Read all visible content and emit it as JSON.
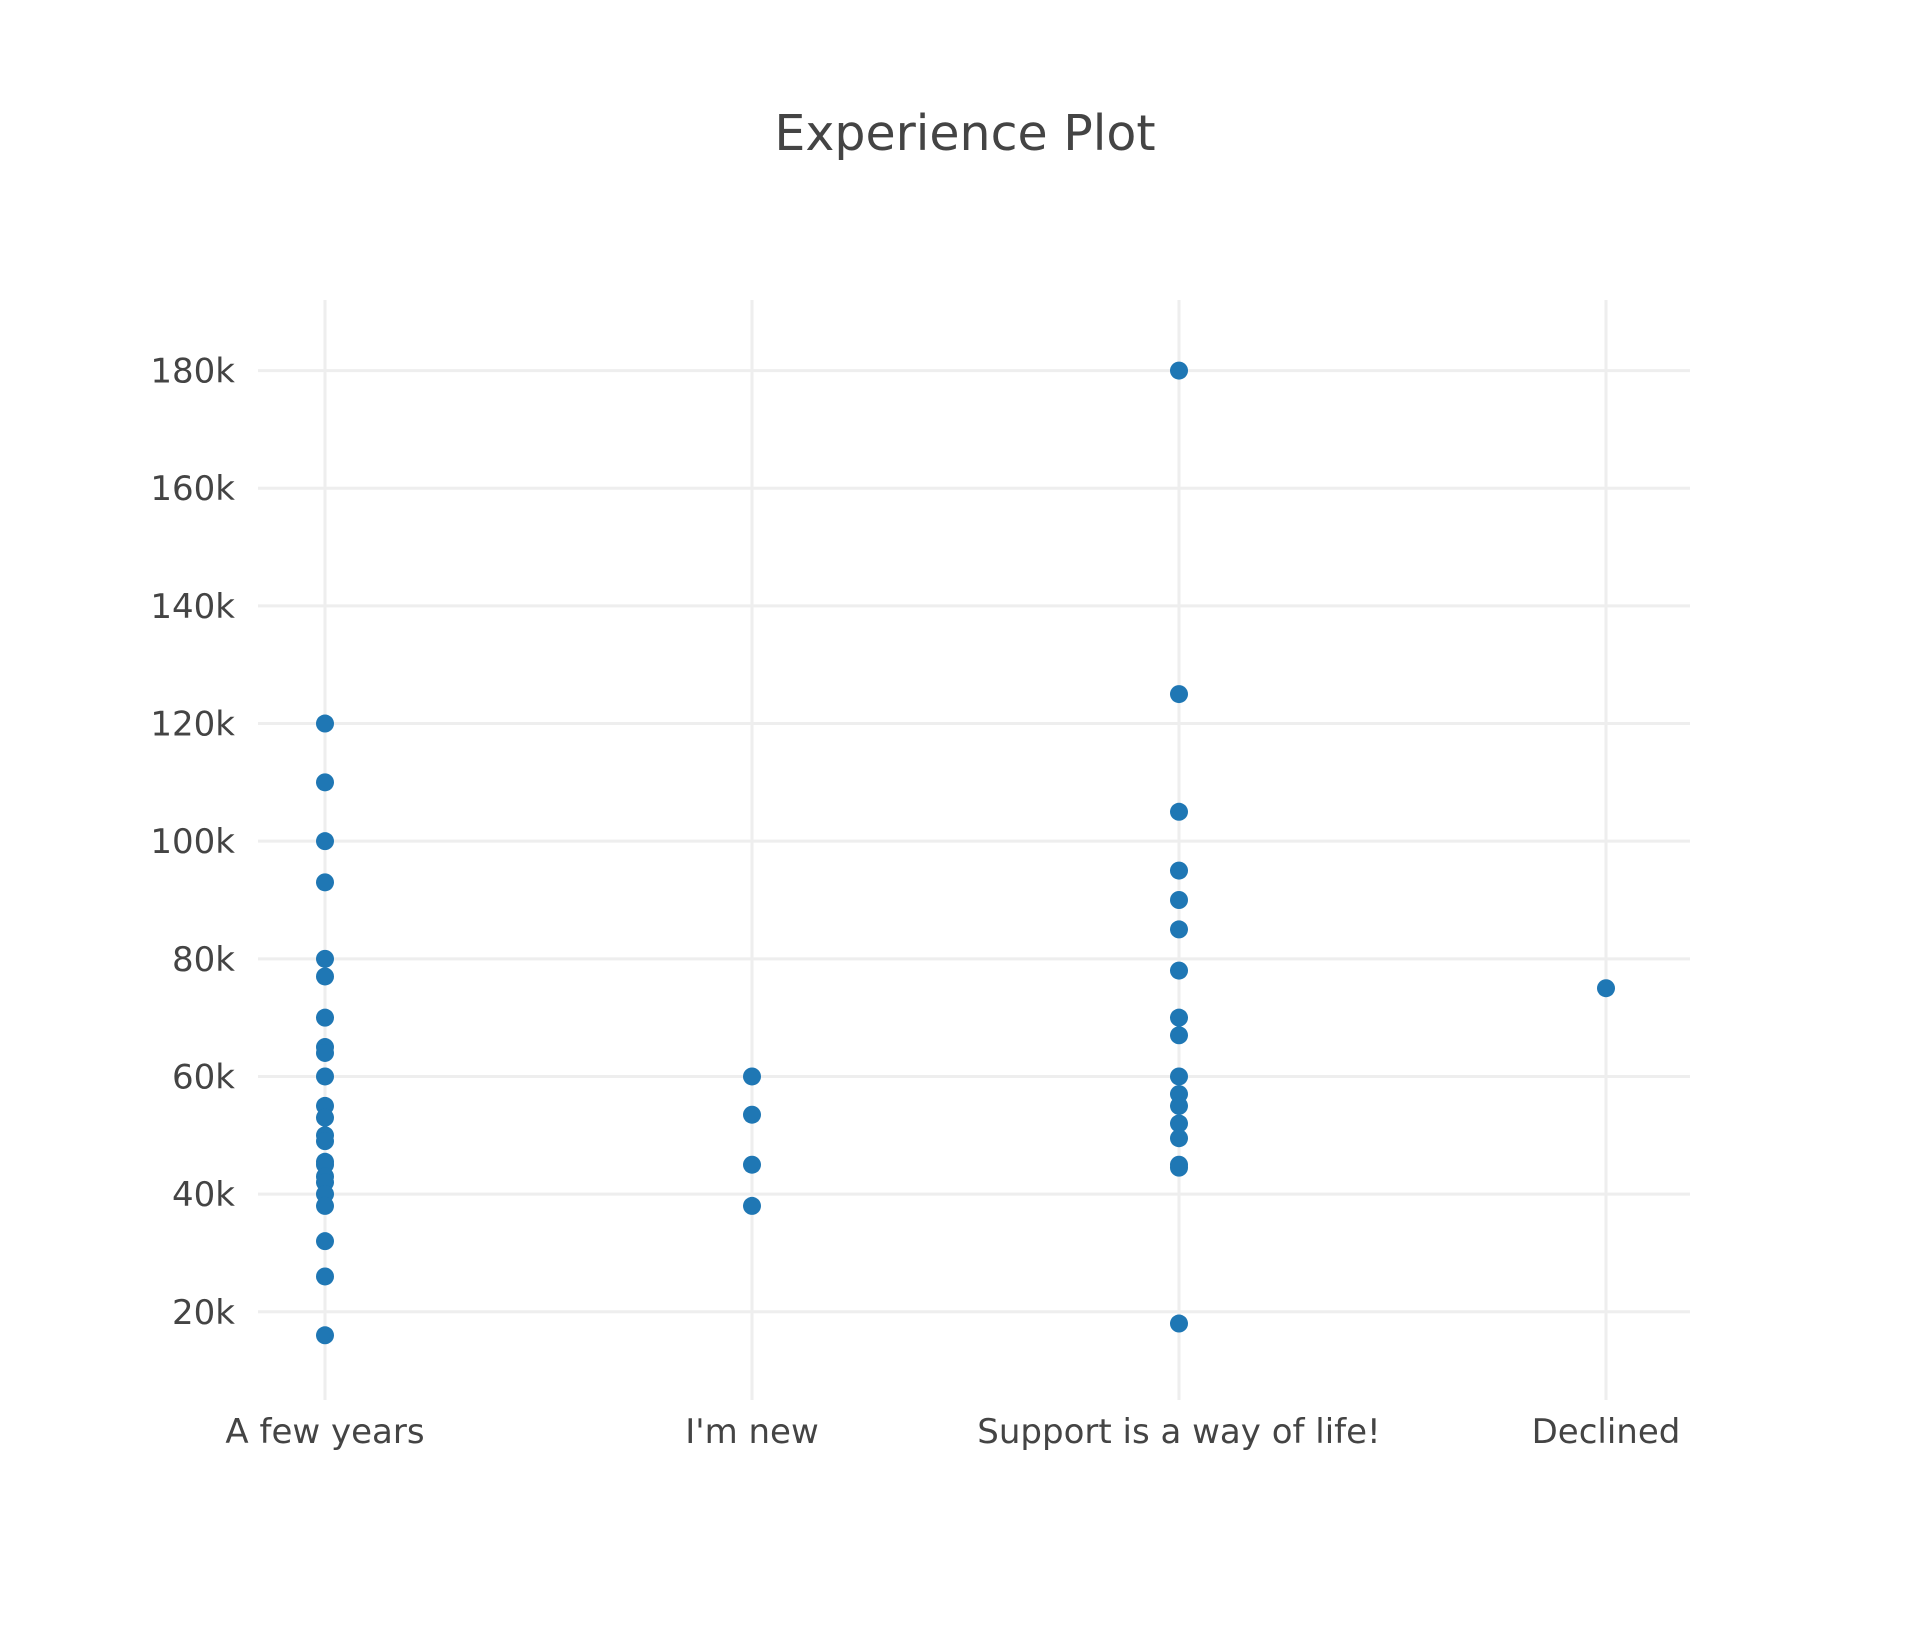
{
  "chart_data": {
    "type": "scatter",
    "title": "Experience Plot",
    "xlabel": "",
    "ylabel": "",
    "categories": [
      "A few years",
      "I'm new",
      "Support is a way of life!",
      "Declined"
    ],
    "y_ticks": [
      20000,
      40000,
      60000,
      80000,
      100000,
      120000,
      140000,
      160000,
      180000
    ],
    "y_tick_labels": [
      "20k",
      "40k",
      "60k",
      "80k",
      "100k",
      "120k",
      "140k",
      "160k",
      "180k"
    ],
    "ylim": [
      5000,
      192000
    ],
    "grid": true,
    "legend": "none",
    "marker_color": "#1f77b4",
    "points": [
      {
        "x": "A few years",
        "y": 120000
      },
      {
        "x": "A few years",
        "y": 110000
      },
      {
        "x": "A few years",
        "y": 100000
      },
      {
        "x": "A few years",
        "y": 93000
      },
      {
        "x": "A few years",
        "y": 80000
      },
      {
        "x": "A few years",
        "y": 77000
      },
      {
        "x": "A few years",
        "y": 70000
      },
      {
        "x": "A few years",
        "y": 65000
      },
      {
        "x": "A few years",
        "y": 64000
      },
      {
        "x": "A few years",
        "y": 60000
      },
      {
        "x": "A few years",
        "y": 55000
      },
      {
        "x": "A few years",
        "y": 53000
      },
      {
        "x": "A few years",
        "y": 50000
      },
      {
        "x": "A few years",
        "y": 49000
      },
      {
        "x": "A few years",
        "y": 45500
      },
      {
        "x": "A few years",
        "y": 45000
      },
      {
        "x": "A few years",
        "y": 43000
      },
      {
        "x": "A few years",
        "y": 42000
      },
      {
        "x": "A few years",
        "y": 40000
      },
      {
        "x": "A few years",
        "y": 38000
      },
      {
        "x": "A few years",
        "y": 32000
      },
      {
        "x": "A few years",
        "y": 26000
      },
      {
        "x": "A few years",
        "y": 16000
      },
      {
        "x": "I'm new",
        "y": 60000
      },
      {
        "x": "I'm new",
        "y": 53500
      },
      {
        "x": "I'm new",
        "y": 45000
      },
      {
        "x": "I'm new",
        "y": 38000
      },
      {
        "x": "Support is a way of life!",
        "y": 180000
      },
      {
        "x": "Support is a way of life!",
        "y": 125000
      },
      {
        "x": "Support is a way of life!",
        "y": 105000
      },
      {
        "x": "Support is a way of life!",
        "y": 95000
      },
      {
        "x": "Support is a way of life!",
        "y": 90000
      },
      {
        "x": "Support is a way of life!",
        "y": 85000
      },
      {
        "x": "Support is a way of life!",
        "y": 78000
      },
      {
        "x": "Support is a way of life!",
        "y": 70000
      },
      {
        "x": "Support is a way of life!",
        "y": 67000
      },
      {
        "x": "Support is a way of life!",
        "y": 60000
      },
      {
        "x": "Support is a way of life!",
        "y": 57000
      },
      {
        "x": "Support is a way of life!",
        "y": 55000
      },
      {
        "x": "Support is a way of life!",
        "y": 52000
      },
      {
        "x": "Support is a way of life!",
        "y": 49500
      },
      {
        "x": "Support is a way of life!",
        "y": 45000
      },
      {
        "x": "Support is a way of life!",
        "y": 44500
      },
      {
        "x": "Support is a way of life!",
        "y": 18000
      },
      {
        "x": "Declined",
        "y": 75000
      }
    ]
  }
}
